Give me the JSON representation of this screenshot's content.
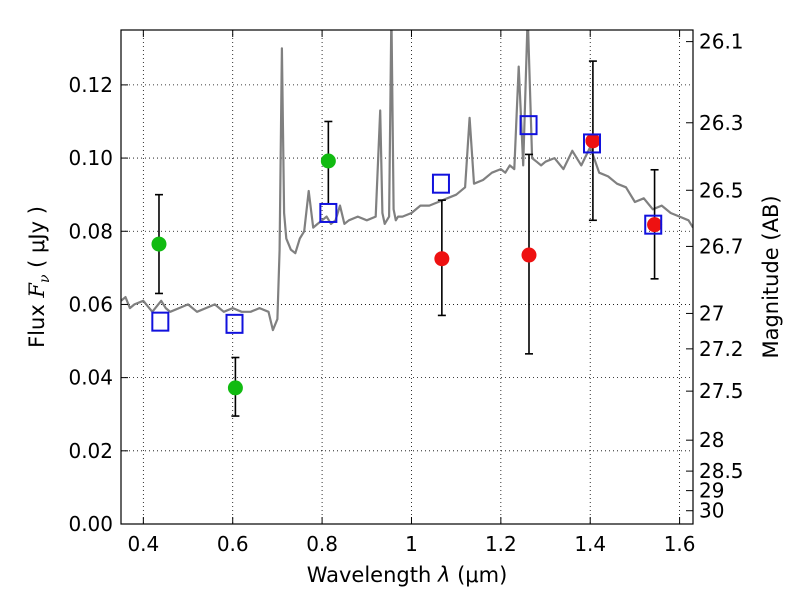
{
  "chart_data": {
    "type": "scatter",
    "title": "",
    "xlabel_prefix": "Wavelength  ",
    "xlabel_symbol": "λ",
    "xlabel_units": " (μm)",
    "ylabel_prefix": "Flux  ",
    "ylabel_symbol": "F",
    "ylabel_subscript": "ν",
    "ylabel_units": "  ( μJy )",
    "y2label": "Magnitude (AB)",
    "xlim": [
      0.35,
      1.63
    ],
    "ylim": [
      0.0,
      0.135
    ],
    "grid": true,
    "grid_style": "dotted",
    "x_ticks": [
      0.4,
      0.6,
      0.8,
      1.0,
      1.2,
      1.4,
      1.6
    ],
    "x_tick_labels": [
      "0.4",
      "0.6",
      "0.8",
      "1",
      "1.2",
      "1.4",
      "1.6"
    ],
    "y_ticks": [
      0.0,
      0.02,
      0.04,
      0.06,
      0.08,
      0.1,
      0.12
    ],
    "y_tick_labels": [
      "0.00",
      "0.02",
      "0.04",
      "0.06",
      "0.08",
      "0.10",
      "0.12"
    ],
    "mag_ticks": [
      26.1,
      26.3,
      26.5,
      26.7,
      27,
      27.2,
      27.5,
      28,
      28.5,
      29,
      30
    ],
    "mag_tick_labels": [
      "26.1",
      "26.3",
      "26.5",
      "26.7",
      "27",
      "27.2",
      "27.5",
      "28",
      "28.5",
      "29",
      "30"
    ],
    "colors": {
      "green": "#11bb11",
      "red": "#ee1111",
      "blue": "#1111dd",
      "template": "#808080",
      "errorbar": "#000000"
    },
    "series": [
      {
        "name": "green photometry",
        "marker": "circle",
        "color": "#11bb11",
        "points": [
          {
            "x": 0.435,
            "y": 0.0765,
            "ylo": 0.063,
            "yhi": 0.09
          },
          {
            "x": 0.606,
            "y": 0.0372,
            "ylo": 0.0295,
            "yhi": 0.0455
          },
          {
            "x": 0.814,
            "y": 0.0992,
            "ylo": 0.0875,
            "yhi": 0.11
          }
        ]
      },
      {
        "name": "red photometry",
        "marker": "circle",
        "color": "#ee1111",
        "points": [
          {
            "x": 1.068,
            "y": 0.0725,
            "ylo": 0.057,
            "yhi": 0.0885
          },
          {
            "x": 1.263,
            "y": 0.0735,
            "ylo": 0.0465,
            "yhi": 0.101
          },
          {
            "x": 1.406,
            "y": 0.1047,
            "ylo": 0.083,
            "yhi": 0.1265
          },
          {
            "x": 1.544,
            "y": 0.0818,
            "ylo": 0.067,
            "yhi": 0.0968
          }
        ]
      },
      {
        "name": "model synthetic photometry",
        "marker": "square-open",
        "color": "#1111dd",
        "points": [
          {
            "x": 0.438,
            "y": 0.0553
          },
          {
            "x": 0.604,
            "y": 0.0547
          },
          {
            "x": 0.814,
            "y": 0.085
          },
          {
            "x": 1.066,
            "y": 0.093
          },
          {
            "x": 1.262,
            "y": 0.109
          },
          {
            "x": 1.404,
            "y": 0.104
          },
          {
            "x": 1.541,
            "y": 0.0818
          }
        ]
      }
    ],
    "template_spectrum": {
      "name": "template spectrum",
      "color": "#808080",
      "x": [
        0.35,
        0.36,
        0.37,
        0.38,
        0.4,
        0.42,
        0.44,
        0.45,
        0.46,
        0.48,
        0.5,
        0.52,
        0.54,
        0.56,
        0.58,
        0.6,
        0.62,
        0.64,
        0.66,
        0.68,
        0.69,
        0.7,
        0.705,
        0.71,
        0.715,
        0.72,
        0.73,
        0.74,
        0.75,
        0.76,
        0.77,
        0.78,
        0.79,
        0.8,
        0.81,
        0.82,
        0.83,
        0.84,
        0.85,
        0.86,
        0.88,
        0.9,
        0.92,
        0.93,
        0.935,
        0.94,
        0.95,
        0.955,
        0.96,
        0.965,
        0.97,
        0.98,
        1.0,
        1.02,
        1.04,
        1.06,
        1.08,
        1.1,
        1.12,
        1.13,
        1.14,
        1.16,
        1.18,
        1.2,
        1.21,
        1.22,
        1.23,
        1.24,
        1.25,
        1.26,
        1.27,
        1.28,
        1.29,
        1.3,
        1.32,
        1.34,
        1.36,
        1.38,
        1.4,
        1.42,
        1.44,
        1.46,
        1.48,
        1.5,
        1.52,
        1.54,
        1.56,
        1.58,
        1.6,
        1.62,
        1.63
      ],
      "y": [
        0.061,
        0.062,
        0.059,
        0.06,
        0.061,
        0.058,
        0.061,
        0.059,
        0.058,
        0.059,
        0.06,
        0.058,
        0.059,
        0.06,
        0.058,
        0.059,
        0.058,
        0.058,
        0.059,
        0.058,
        0.053,
        0.056,
        0.075,
        0.13,
        0.085,
        0.078,
        0.075,
        0.074,
        0.078,
        0.08,
        0.091,
        0.081,
        0.082,
        0.083,
        0.084,
        0.082,
        0.083,
        0.087,
        0.082,
        0.083,
        0.084,
        0.083,
        0.084,
        0.113,
        0.085,
        0.082,
        0.084,
        0.14,
        0.086,
        0.083,
        0.084,
        0.084,
        0.085,
        0.087,
        0.087,
        0.088,
        0.089,
        0.09,
        0.092,
        0.111,
        0.093,
        0.094,
        0.096,
        0.097,
        0.096,
        0.098,
        0.097,
        0.125,
        0.098,
        0.139,
        0.1,
        0.099,
        0.098,
        0.099,
        0.1,
        0.097,
        0.102,
        0.098,
        0.103,
        0.096,
        0.095,
        0.093,
        0.092,
        0.088,
        0.089,
        0.086,
        0.087,
        0.085,
        0.084,
        0.083,
        0.081
      ]
    }
  }
}
